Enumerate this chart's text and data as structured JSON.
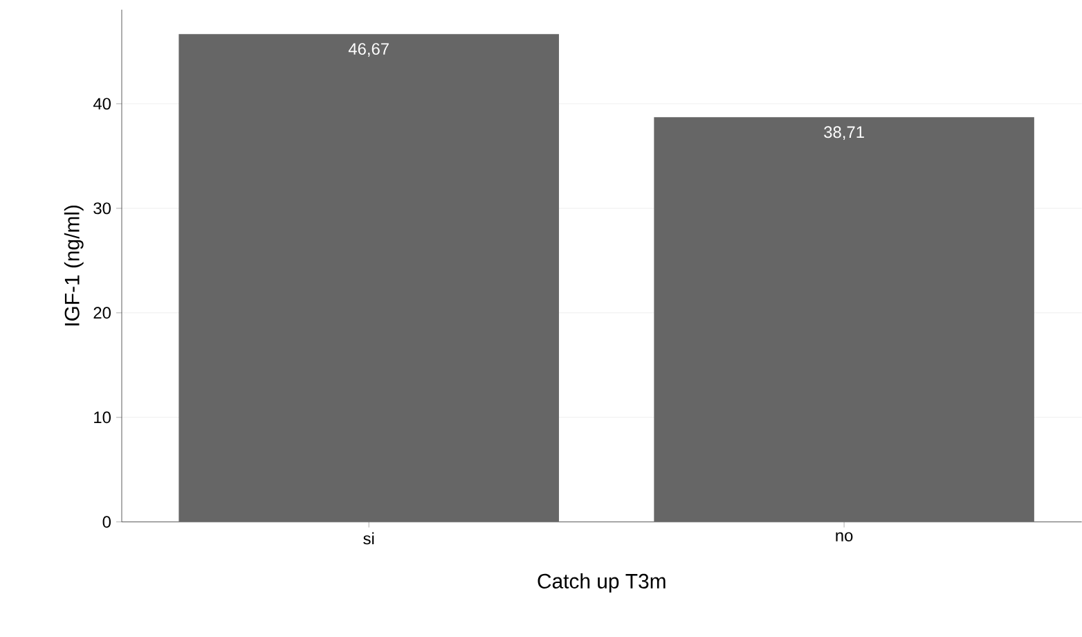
{
  "chart_data": {
    "type": "bar",
    "xlabel": "Catch up T3m",
    "ylabel": "IGF-1 (ng/ml)",
    "categories": [
      "si",
      "no"
    ],
    "values": [
      46.67,
      38.71
    ],
    "value_labels": [
      "46,67",
      "38,71"
    ],
    "color": "#666666",
    "ylim": [
      0,
      49
    ],
    "yticks": [
      0,
      10,
      20,
      30,
      40
    ],
    "grid": "y"
  }
}
